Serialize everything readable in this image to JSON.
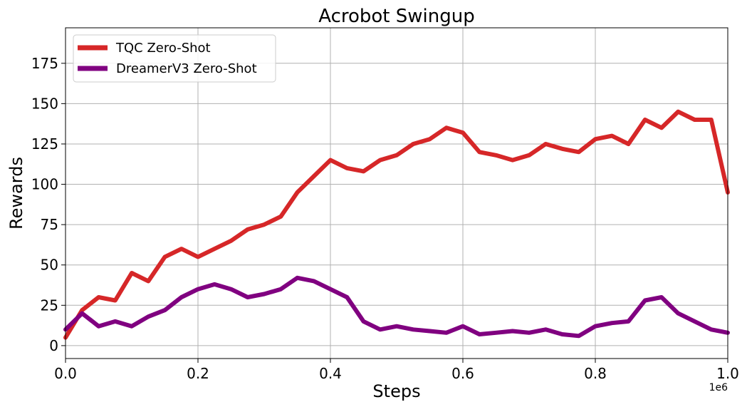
{
  "chart_data": {
    "type": "line",
    "title": "Acrobot Swingup",
    "xlabel": "Steps",
    "ylabel": "Rewards",
    "x_multiplier": "1e6",
    "xlim": [
      0,
      1.0
    ],
    "ylim": [
      -8,
      197
    ],
    "xticks": [
      0.0,
      0.2,
      0.4,
      0.6,
      0.8,
      1.0
    ],
    "xtick_labels": [
      "0.0",
      "0.2",
      "0.4",
      "0.6",
      "0.8",
      "1.0"
    ],
    "yticks": [
      0,
      25,
      50,
      75,
      100,
      125,
      150,
      175
    ],
    "ytick_labels": [
      "0",
      "25",
      "50",
      "75",
      "100",
      "125",
      "150",
      "175"
    ],
    "grid": true,
    "legend_position": "top-left",
    "x": [
      0.0,
      0.025,
      0.05,
      0.075,
      0.1,
      0.125,
      0.15,
      0.175,
      0.2,
      0.225,
      0.25,
      0.275,
      0.3,
      0.325,
      0.35,
      0.375,
      0.4,
      0.425,
      0.45,
      0.475,
      0.5,
      0.525,
      0.55,
      0.575,
      0.6,
      0.625,
      0.65,
      0.675,
      0.7,
      0.725,
      0.75,
      0.775,
      0.8,
      0.825,
      0.85,
      0.875,
      0.9,
      0.925,
      0.95,
      0.975,
      1.0
    ],
    "series": [
      {
        "name": "TQC Zero-Shot",
        "color": "#d62728",
        "values": [
          5,
          22,
          30,
          28,
          45,
          40,
          55,
          60,
          55,
          60,
          65,
          72,
          75,
          80,
          95,
          105,
          115,
          110,
          108,
          115,
          118,
          125,
          128,
          135,
          132,
          120,
          118,
          115,
          118,
          125,
          122,
          120,
          128,
          130,
          125,
          140,
          135,
          145,
          140,
          140,
          95
        ]
      },
      {
        "name": "DreamerV3 Zero-Shot",
        "color": "#800080",
        "values": [
          10,
          20,
          12,
          15,
          12,
          18,
          22,
          30,
          35,
          38,
          35,
          30,
          32,
          35,
          42,
          40,
          35,
          30,
          15,
          10,
          12,
          10,
          9,
          8,
          12,
          7,
          8,
          9,
          8,
          10,
          7,
          6,
          12,
          14,
          15,
          28,
          30,
          20,
          15,
          10,
          8
        ]
      }
    ]
  }
}
